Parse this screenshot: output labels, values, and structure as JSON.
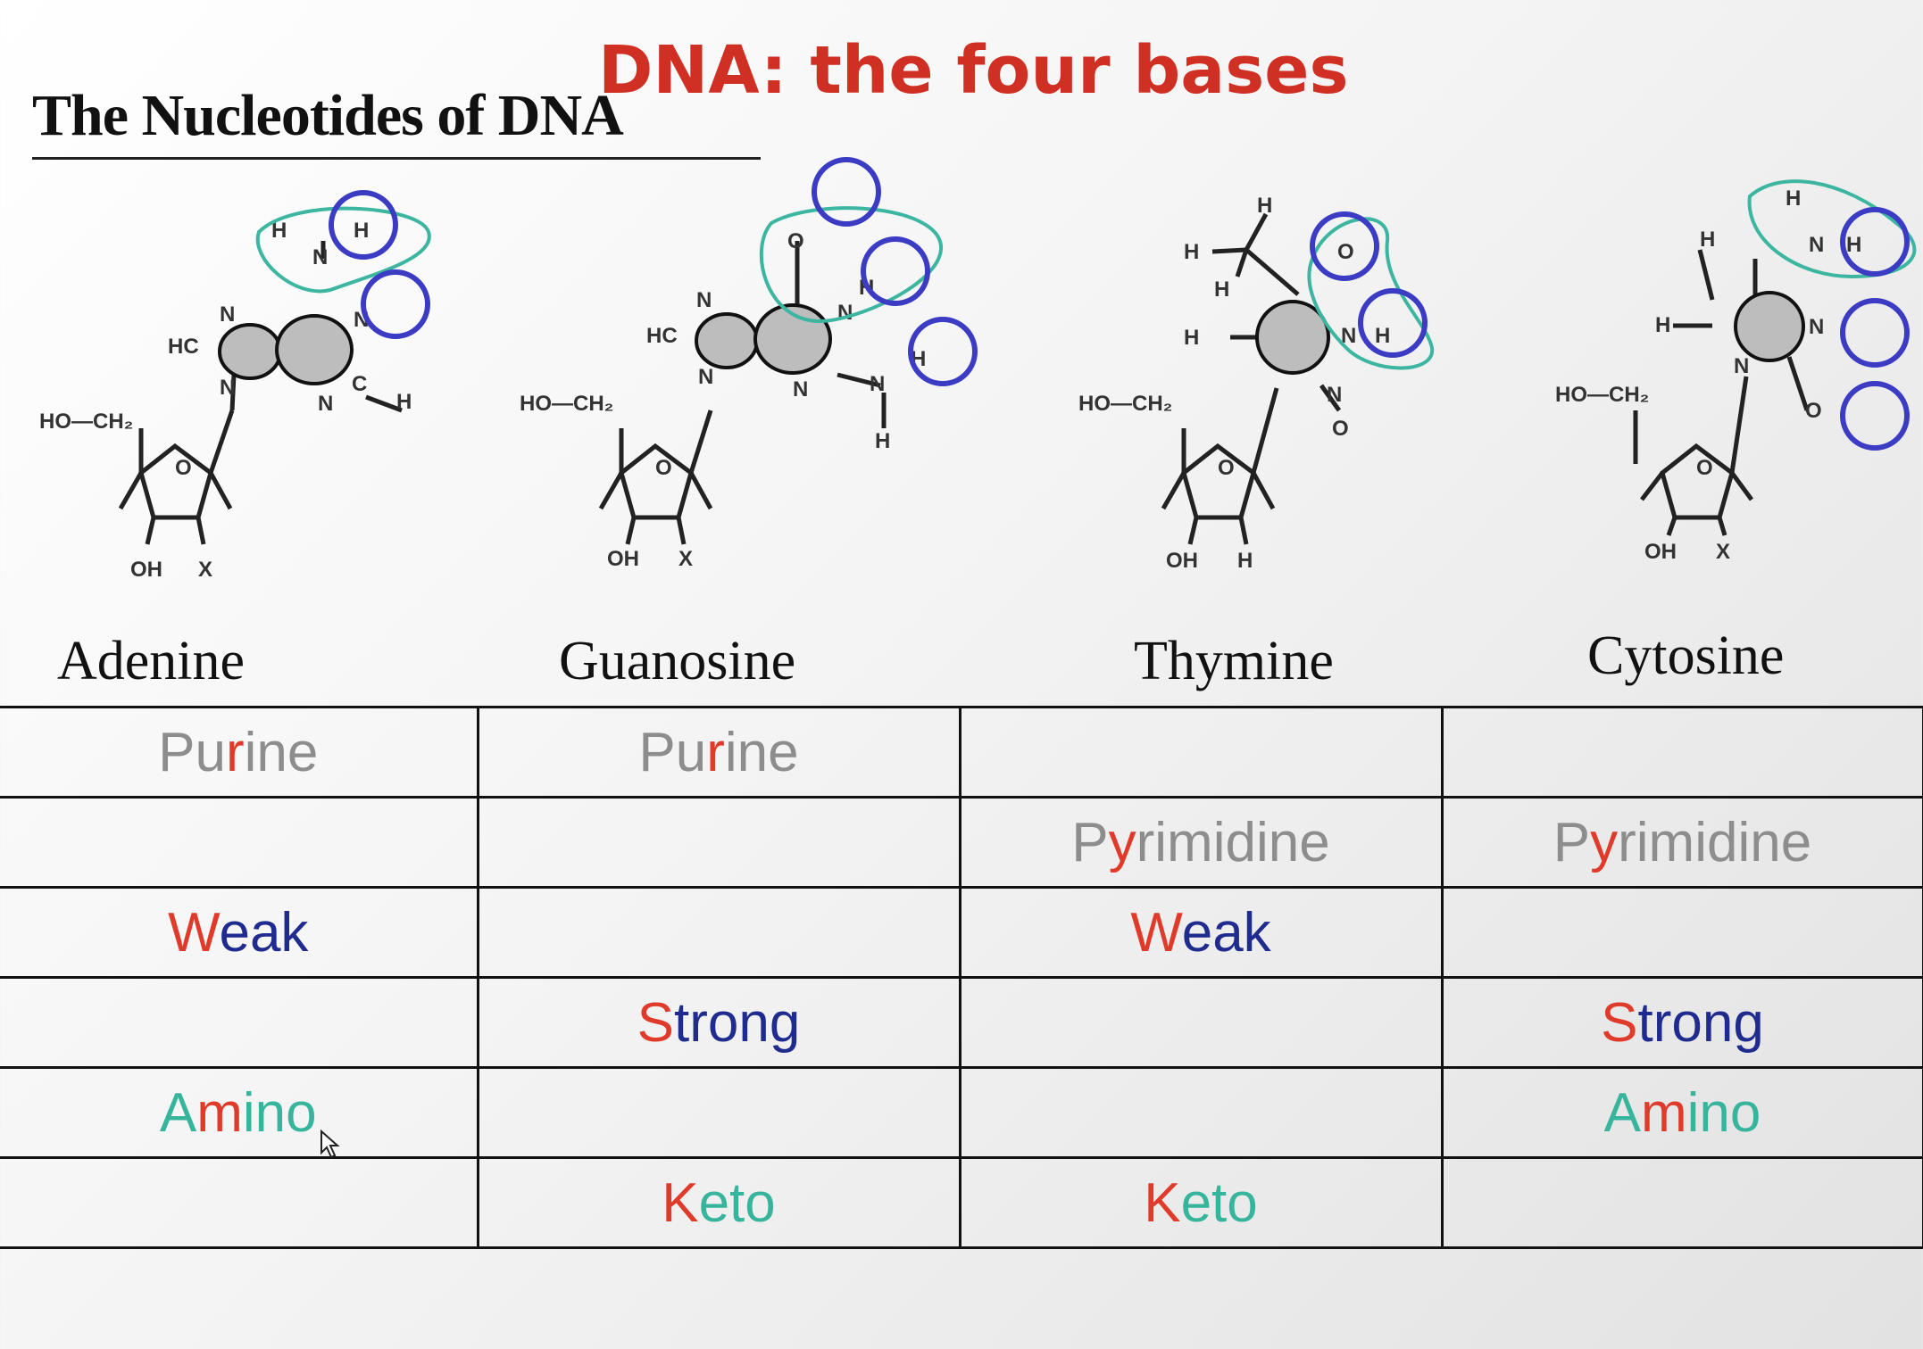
{
  "slide_title": "DNA: the four bases",
  "figure_title": "The Nucleotides of DNA",
  "bases": [
    "Adenine",
    "Guanosine",
    "Thymine",
    "Cytosine"
  ],
  "labels": {
    "HO_CH2": "HO—CH₂",
    "OH": "OH",
    "X": "X",
    "H": "H",
    "N": "N",
    "O": "O",
    "HC": "HC",
    "C": "C"
  },
  "table": {
    "rows": [
      [
        {
          "lead": "Pu",
          "accent": "r",
          "rest": "ine",
          "kind": "purine"
        },
        {
          "lead": "Pu",
          "accent": "r",
          "rest": "ine",
          "kind": "purine"
        },
        null,
        null
      ],
      [
        null,
        null,
        {
          "lead": "P",
          "accent": "y",
          "rest": "rimidine",
          "kind": "pyrimidine"
        },
        {
          "lead": "P",
          "accent": "y",
          "rest": "rimidine",
          "kind": "pyrimidine"
        }
      ],
      [
        {
          "lead": "",
          "accent": "W",
          "rest": "eak",
          "kind": "weak"
        },
        null,
        {
          "lead": "",
          "accent": "W",
          "rest": "eak",
          "kind": "weak"
        },
        null
      ],
      [
        null,
        {
          "lead": "",
          "accent": "S",
          "rest": "trong",
          "kind": "strong"
        },
        null,
        {
          "lead": "",
          "accent": "S",
          "rest": "trong",
          "kind": "strong"
        }
      ],
      [
        {
          "lead": "A",
          "accent": "m",
          "rest": "ino",
          "kind": "amino"
        },
        null,
        null,
        {
          "lead": "A",
          "accent": "m",
          "rest": "ino",
          "kind": "amino"
        }
      ],
      [
        null,
        {
          "lead": "",
          "accent": "K",
          "rest": "eto",
          "kind": "keto"
        },
        {
          "lead": "",
          "accent": "K",
          "rest": "eto",
          "kind": "keto"
        },
        null
      ]
    ]
  },
  "colors": {
    "title_red": "#d03024",
    "accent_red": "#e03a2a",
    "navy": "#1f2b8e",
    "teal": "#36b59c",
    "gray": "#8d8d8d",
    "annotation_blue": "#3b3bc4",
    "annotation_teal": "#3cb6a0"
  }
}
